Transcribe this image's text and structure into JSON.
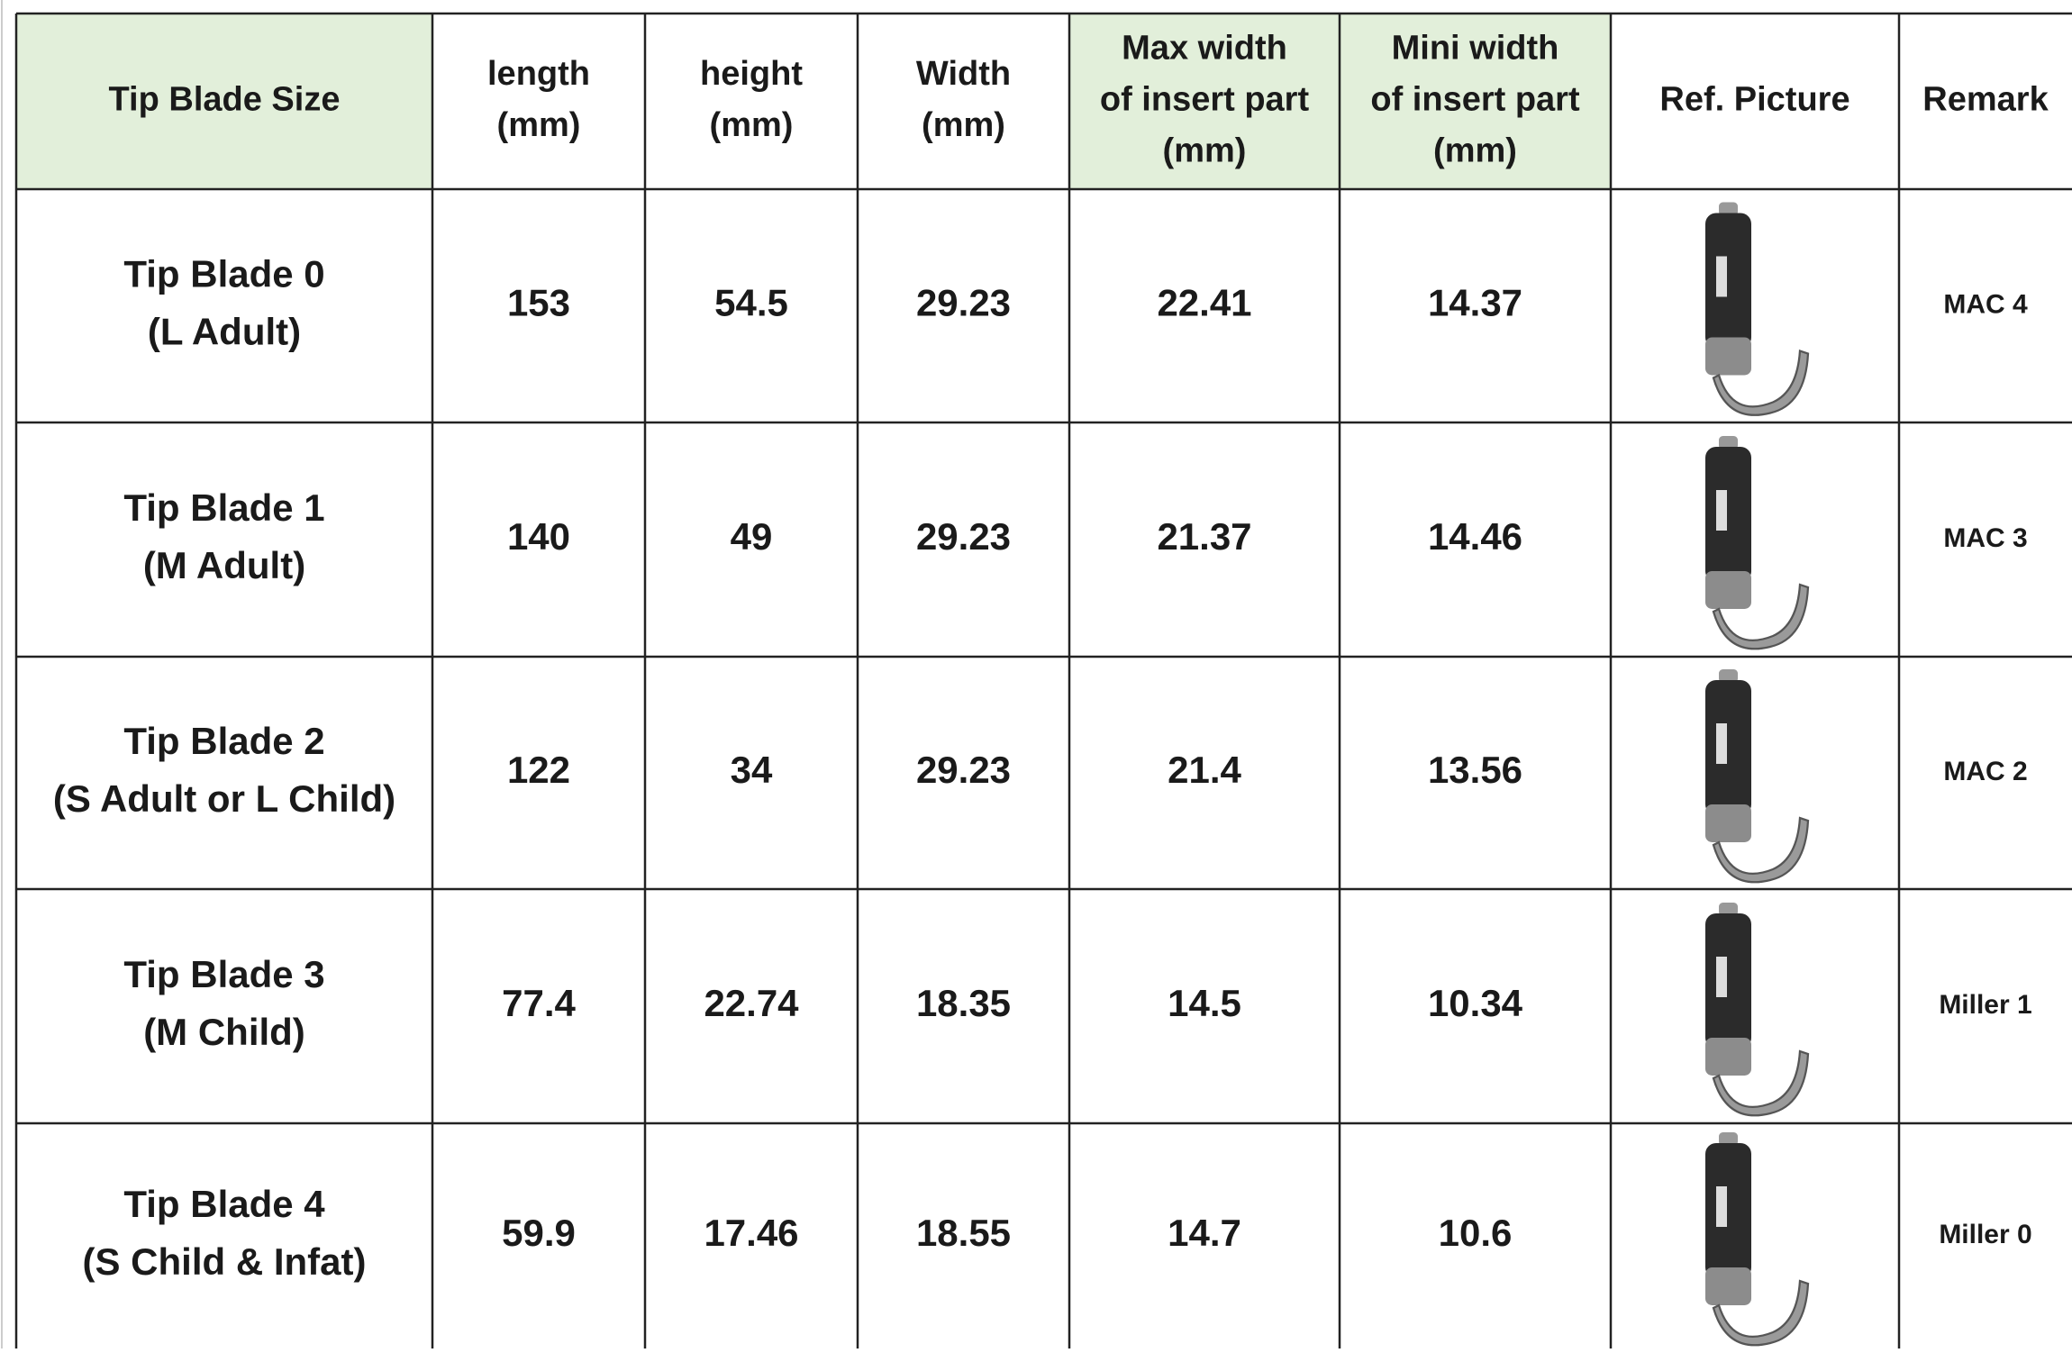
{
  "table": {
    "header": [
      [
        "Tip Blade Size"
      ],
      [
        "length",
        "(mm)"
      ],
      [
        "height",
        "(mm)"
      ],
      [
        "Width",
        "(mm)"
      ],
      [
        "Max width",
        "of insert part",
        "(mm)"
      ],
      [
        "Mini width",
        "of insert part",
        "(mm)"
      ],
      [
        "Ref. Picture"
      ],
      [
        "Remark"
      ]
    ],
    "rows": [
      {
        "name": [
          "Tip Blade 0",
          "(L Adult)"
        ],
        "values": [
          "153",
          "54.5",
          "29.23",
          "22.41",
          "14.37"
        ],
        "remark": "MAC 4"
      },
      {
        "name": [
          "Tip Blade 1",
          "(M Adult)"
        ],
        "values": [
          "140",
          "49",
          "29.23",
          "21.37",
          "14.46"
        ],
        "remark": "MAC 3"
      },
      {
        "name": [
          "Tip Blade 2",
          "(S Adult or L Child)"
        ],
        "values": [
          "122",
          "34",
          "29.23",
          "21.4",
          "13.56"
        ],
        "remark": "MAC 2"
      },
      {
        "name": [
          "Tip Blade 3",
          "(M Child)"
        ],
        "values": [
          "77.4",
          "22.74",
          "18.35",
          "14.5",
          "10.34"
        ],
        "remark": "Miller 1"
      },
      {
        "name": [
          "Tip Blade 4",
          "(S Child & Infat)"
        ],
        "values": [
          "59.9",
          "17.46",
          "18.55",
          "14.7",
          "10.6"
        ],
        "remark": "Miller 0"
      }
    ]
  }
}
